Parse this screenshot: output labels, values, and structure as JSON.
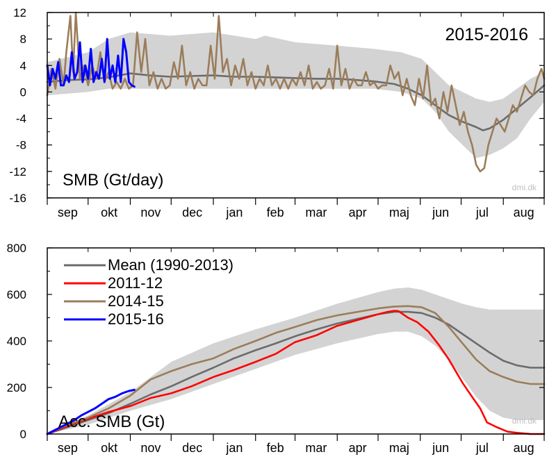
{
  "chart_data": [
    {
      "type": "line",
      "id": "daily",
      "title": "SMB (Gt/day)",
      "season_label": "2015-2016",
      "credit": "dmi.dk",
      "ylim": [
        -16,
        12
      ],
      "yticks": [
        12,
        8,
        4,
        0,
        -4,
        -8,
        -12,
        -16
      ],
      "x_unit": "day of hydrological year (1 Sep = 0)",
      "xlim": [
        0,
        365
      ],
      "months": [
        "sep",
        "okt",
        "nov",
        "dec",
        "jan",
        "feb",
        "mar",
        "apr",
        "maj",
        "jun",
        "jul",
        "aug"
      ],
      "band": {
        "x": [
          0,
          30,
          45,
          61,
          90,
          122,
          153,
          160,
          182,
          213,
          240,
          260,
          275,
          285,
          295,
          305,
          315,
          325,
          335,
          345,
          355,
          365
        ],
        "upper": [
          4.5,
          6,
          8,
          9,
          8.5,
          9,
          8,
          8.5,
          7.5,
          7,
          6.5,
          6,
          5,
          3,
          1,
          0,
          -1,
          -1.5,
          -1,
          0.5,
          2,
          3
        ],
        "lower": [
          -0.5,
          0,
          0.5,
          0.5,
          0.5,
          0.5,
          0.5,
          0.5,
          0.5,
          0.5,
          0.5,
          0,
          -1,
          -3,
          -6,
          -8,
          -10,
          -9.5,
          -8.5,
          -7,
          -4,
          -1.5
        ]
      },
      "series": [
        {
          "name": "Mean (1990-2013)",
          "color": "#6b6b6b",
          "x": [
            0,
            15,
            30,
            45,
            61,
            75,
            90,
            105,
            122,
            137,
            153,
            168,
            182,
            197,
            213,
            228,
            240,
            255,
            265,
            275,
            285,
            295,
            305,
            315,
            320,
            325,
            335,
            345,
            355,
            365
          ],
          "y": [
            1.5,
            1.8,
            1.9,
            2.2,
            2.8,
            2.5,
            2.3,
            2.4,
            2.5,
            2.3,
            2.3,
            2.2,
            2.1,
            2.0,
            2.0,
            1.8,
            1.6,
            1.2,
            0.5,
            -0.5,
            -2.0,
            -3.5,
            -4.5,
            -5.3,
            -5.8,
            -5.5,
            -4.2,
            -2.5,
            -0.8,
            1.0
          ]
        },
        {
          "name": "2014-15",
          "color": "#9b7d5a",
          "x": [
            0,
            3,
            6,
            9,
            12,
            14,
            17,
            19,
            21,
            24,
            27,
            30,
            33,
            36,
            39,
            42,
            45,
            48,
            51,
            54,
            57,
            60,
            63,
            66,
            69,
            72,
            75,
            78,
            81,
            84,
            87,
            90,
            93,
            96,
            99,
            102,
            105,
            108,
            111,
            114,
            117,
            120,
            123,
            126,
            129,
            132,
            135,
            138,
            141,
            144,
            147,
            150,
            153,
            156,
            159,
            162,
            165,
            168,
            171,
            174,
            177,
            180,
            183,
            186,
            189,
            192,
            195,
            198,
            201,
            204,
            207,
            210,
            213,
            216,
            219,
            222,
            225,
            228,
            231,
            234,
            237,
            240,
            243,
            246,
            249,
            252,
            255,
            258,
            261,
            264,
            267,
            270,
            273,
            276,
            279,
            282,
            285,
            288,
            291,
            294,
            297,
            300,
            303,
            306,
            309,
            312,
            315,
            318,
            321,
            324,
            327,
            330,
            333,
            336,
            339,
            342,
            345,
            348,
            351,
            354,
            357,
            360,
            363,
            365
          ],
          "y": [
            -0.5,
            3.5,
            0.5,
            5,
            1,
            6,
            11.5,
            3,
            12,
            2,
            4,
            1,
            4,
            2,
            6,
            1.5,
            3,
            0.5,
            1.5,
            0.5,
            2,
            0.5,
            1,
            9,
            3,
            8,
            1,
            3,
            0.5,
            2,
            0.5,
            1,
            4.5,
            2,
            7,
            1,
            3,
            0.5,
            2,
            1,
            1,
            7,
            2,
            11.5,
            3,
            5,
            1,
            4,
            2,
            5,
            1,
            3,
            0.5,
            2,
            1,
            4,
            1,
            2,
            0.5,
            2,
            0.5,
            2,
            1,
            3,
            1,
            4,
            0.5,
            1.5,
            0.5,
            1,
            3.5,
            0.5,
            7,
            1,
            3.5,
            0.5,
            2,
            1,
            1,
            3,
            1,
            1.5,
            0.5,
            1,
            1,
            4,
            2,
            3,
            -0.5,
            2,
            -0.5,
            -2,
            2,
            -1,
            4,
            -2,
            -1,
            -4,
            0,
            -3,
            1,
            -2,
            -5,
            -3,
            -6,
            -8,
            -11,
            -12,
            -11.5,
            -8,
            -6,
            -4,
            -5,
            -6,
            -4,
            -2,
            -3,
            -1,
            1,
            0,
            -0.5,
            2,
            3.5,
            2
          ]
        },
        {
          "name": "2015-16",
          "color": "#0000ff",
          "x": [
            0,
            2,
            4,
            6,
            8,
            10,
            12,
            14,
            16,
            18,
            20,
            22,
            24,
            26,
            28,
            30,
            32,
            34,
            36,
            38,
            40,
            42,
            44,
            46,
            48,
            50,
            52,
            54,
            56,
            58,
            60,
            62,
            64
          ],
          "y": [
            4,
            1,
            3.5,
            2,
            4.5,
            1,
            1,
            2.5,
            1.5,
            6,
            2,
            3,
            7.5,
            1.5,
            4,
            2,
            6.5,
            1.5,
            3,
            2,
            5,
            1.5,
            8,
            2,
            4,
            1.5,
            5.5,
            1.5,
            8,
            6,
            1.5,
            1,
            0.8
          ]
        }
      ]
    },
    {
      "type": "line",
      "id": "accumulated",
      "title": "Acc. SMB (Gt)",
      "credit": "dmi.dk",
      "ylim": [
        0,
        800
      ],
      "yticks": [
        800,
        600,
        400,
        200,
        0
      ],
      "x_unit": "day of hydrological year (1 Sep = 0)",
      "xlim": [
        0,
        365
      ],
      "months": [
        "sep",
        "okt",
        "nov",
        "dec",
        "jan",
        "feb",
        "mar",
        "apr",
        "maj",
        "jun",
        "jul",
        "aug"
      ],
      "band": {
        "x": [
          0,
          30,
          61,
          91,
          122,
          153,
          182,
          213,
          243,
          255,
          265,
          275,
          285,
          295,
          305,
          315,
          325,
          335,
          345,
          355,
          365
        ],
        "upper": [
          0,
          80,
          180,
          310,
          390,
          450,
          500,
          560,
          610,
          625,
          630,
          620,
          600,
          580,
          560,
          545,
          535,
          535,
          535,
          535,
          535
        ],
        "lower": [
          0,
          40,
          100,
          150,
          215,
          280,
          340,
          390,
          430,
          440,
          440,
          420,
          380,
          320,
          240,
          160,
          100,
          70,
          60,
          60,
          60
        ]
      },
      "series": [
        {
          "name": "Mean (1990-2013)",
          "color": "#6b6b6b",
          "x": [
            0,
            15,
            30,
            45,
            61,
            76,
            91,
            106,
            122,
            137,
            153,
            168,
            182,
            198,
            213,
            228,
            243,
            255,
            265,
            275,
            285,
            295,
            305,
            315,
            325,
            335,
            345,
            355,
            365
          ],
          "y": [
            0,
            30,
            60,
            90,
            130,
            170,
            205,
            245,
            285,
            325,
            360,
            390,
            420,
            450,
            475,
            495,
            515,
            525,
            525,
            520,
            500,
            470,
            430,
            390,
            350,
            315,
            295,
            285,
            285
          ]
        },
        {
          "name": "2011-12",
          "color": "#ff0000",
          "x": [
            0,
            15,
            30,
            45,
            61,
            76,
            91,
            106,
            122,
            137,
            153,
            168,
            182,
            198,
            213,
            228,
            243,
            250,
            255,
            258,
            265,
            272,
            280,
            288,
            295,
            305,
            312,
            318,
            323,
            330,
            338,
            345,
            355,
            365
          ],
          "y": [
            0,
            35,
            65,
            95,
            120,
            155,
            175,
            205,
            245,
            275,
            310,
            345,
            395,
            425,
            465,
            490,
            515,
            525,
            530,
            528,
            500,
            480,
            440,
            380,
            320,
            220,
            160,
            110,
            50,
            30,
            10,
            5,
            0,
            0
          ],
          "label_line": "2011-12"
        },
        {
          "name": "2014-15",
          "color": "#9b7d5a",
          "x": [
            0,
            15,
            30,
            45,
            61,
            76,
            91,
            106,
            122,
            137,
            153,
            168,
            182,
            198,
            213,
            228,
            243,
            255,
            265,
            275,
            285,
            295,
            305,
            315,
            325,
            335,
            345,
            355,
            365
          ],
          "y": [
            0,
            40,
            70,
            110,
            165,
            235,
            270,
            300,
            325,
            365,
            400,
            435,
            460,
            490,
            510,
            525,
            540,
            548,
            550,
            545,
            520,
            460,
            390,
            320,
            270,
            245,
            225,
            215,
            215
          ]
        },
        {
          "name": "2015-16",
          "color": "#0000ff",
          "x": [
            0,
            5,
            10,
            15,
            20,
            25,
            30,
            35,
            40,
            45,
            50,
            55,
            60,
            64
          ],
          "y": [
            0,
            15,
            30,
            45,
            60,
            80,
            95,
            110,
            130,
            150,
            160,
            175,
            185,
            190
          ]
        }
      ],
      "legend": {
        "placement": "top-left",
        "entries": [
          "Mean (1990-2013)",
          "2011-12",
          "2014-15",
          "2015-16"
        ]
      }
    }
  ]
}
